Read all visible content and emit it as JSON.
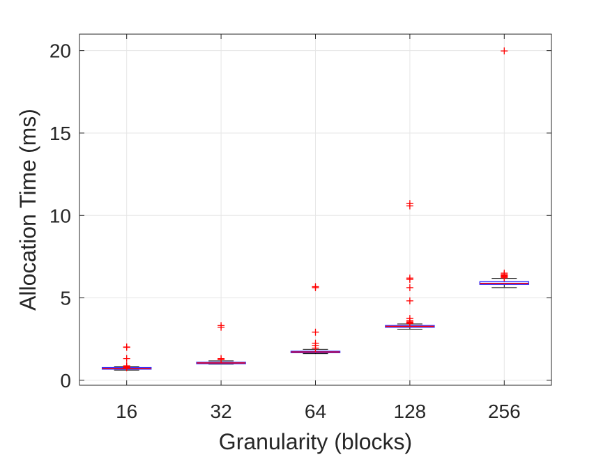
{
  "chart_data": {
    "type": "box",
    "title": "",
    "xlabel": "Granularity (blocks)",
    "ylabel": "Allocation Time (ms)",
    "categories": [
      "16",
      "32",
      "64",
      "128",
      "256"
    ],
    "ylim": [
      -0.3,
      21
    ],
    "yticks": [
      0,
      5,
      10,
      15,
      20
    ],
    "grid": true,
    "boxes": [
      {
        "category": "16",
        "min": 0.62,
        "q1": 0.68,
        "median": 0.72,
        "q3": 0.77,
        "max": 0.82,
        "outliers": [
          0.76,
          0.8,
          0.84,
          0.88,
          1.32,
          2.0,
          2.02
        ]
      },
      {
        "category": "32",
        "min": 0.98,
        "q1": 1.02,
        "median": 1.05,
        "q3": 1.09,
        "max": 1.18,
        "outliers": [
          1.25,
          1.32,
          3.22,
          3.32
        ]
      },
      {
        "category": "64",
        "min": 1.62,
        "q1": 1.68,
        "median": 1.72,
        "q3": 1.76,
        "max": 1.88,
        "outliers": [
          1.95,
          2.12,
          2.25,
          2.92,
          5.62,
          5.68
        ]
      },
      {
        "category": "128",
        "min": 3.1,
        "q1": 3.22,
        "median": 3.27,
        "q3": 3.32,
        "max": 3.42,
        "outliers": [
          3.45,
          3.5,
          3.55,
          3.62,
          3.75,
          4.82,
          5.62,
          6.12,
          6.2,
          10.58,
          10.72
        ]
      },
      {
        "category": "256",
        "min": 5.62,
        "q1": 5.82,
        "median": 5.88,
        "q3": 5.98,
        "max": 6.18,
        "outliers": [
          6.22,
          6.28,
          6.32,
          6.36,
          6.42,
          6.5,
          19.98
        ]
      }
    ],
    "colors": {
      "box": "#3333ff",
      "median": "#ff0000",
      "whisker": "#000000",
      "outlier": "#ff0000",
      "grid": "#e6e6e6",
      "axis": "#262626"
    }
  }
}
